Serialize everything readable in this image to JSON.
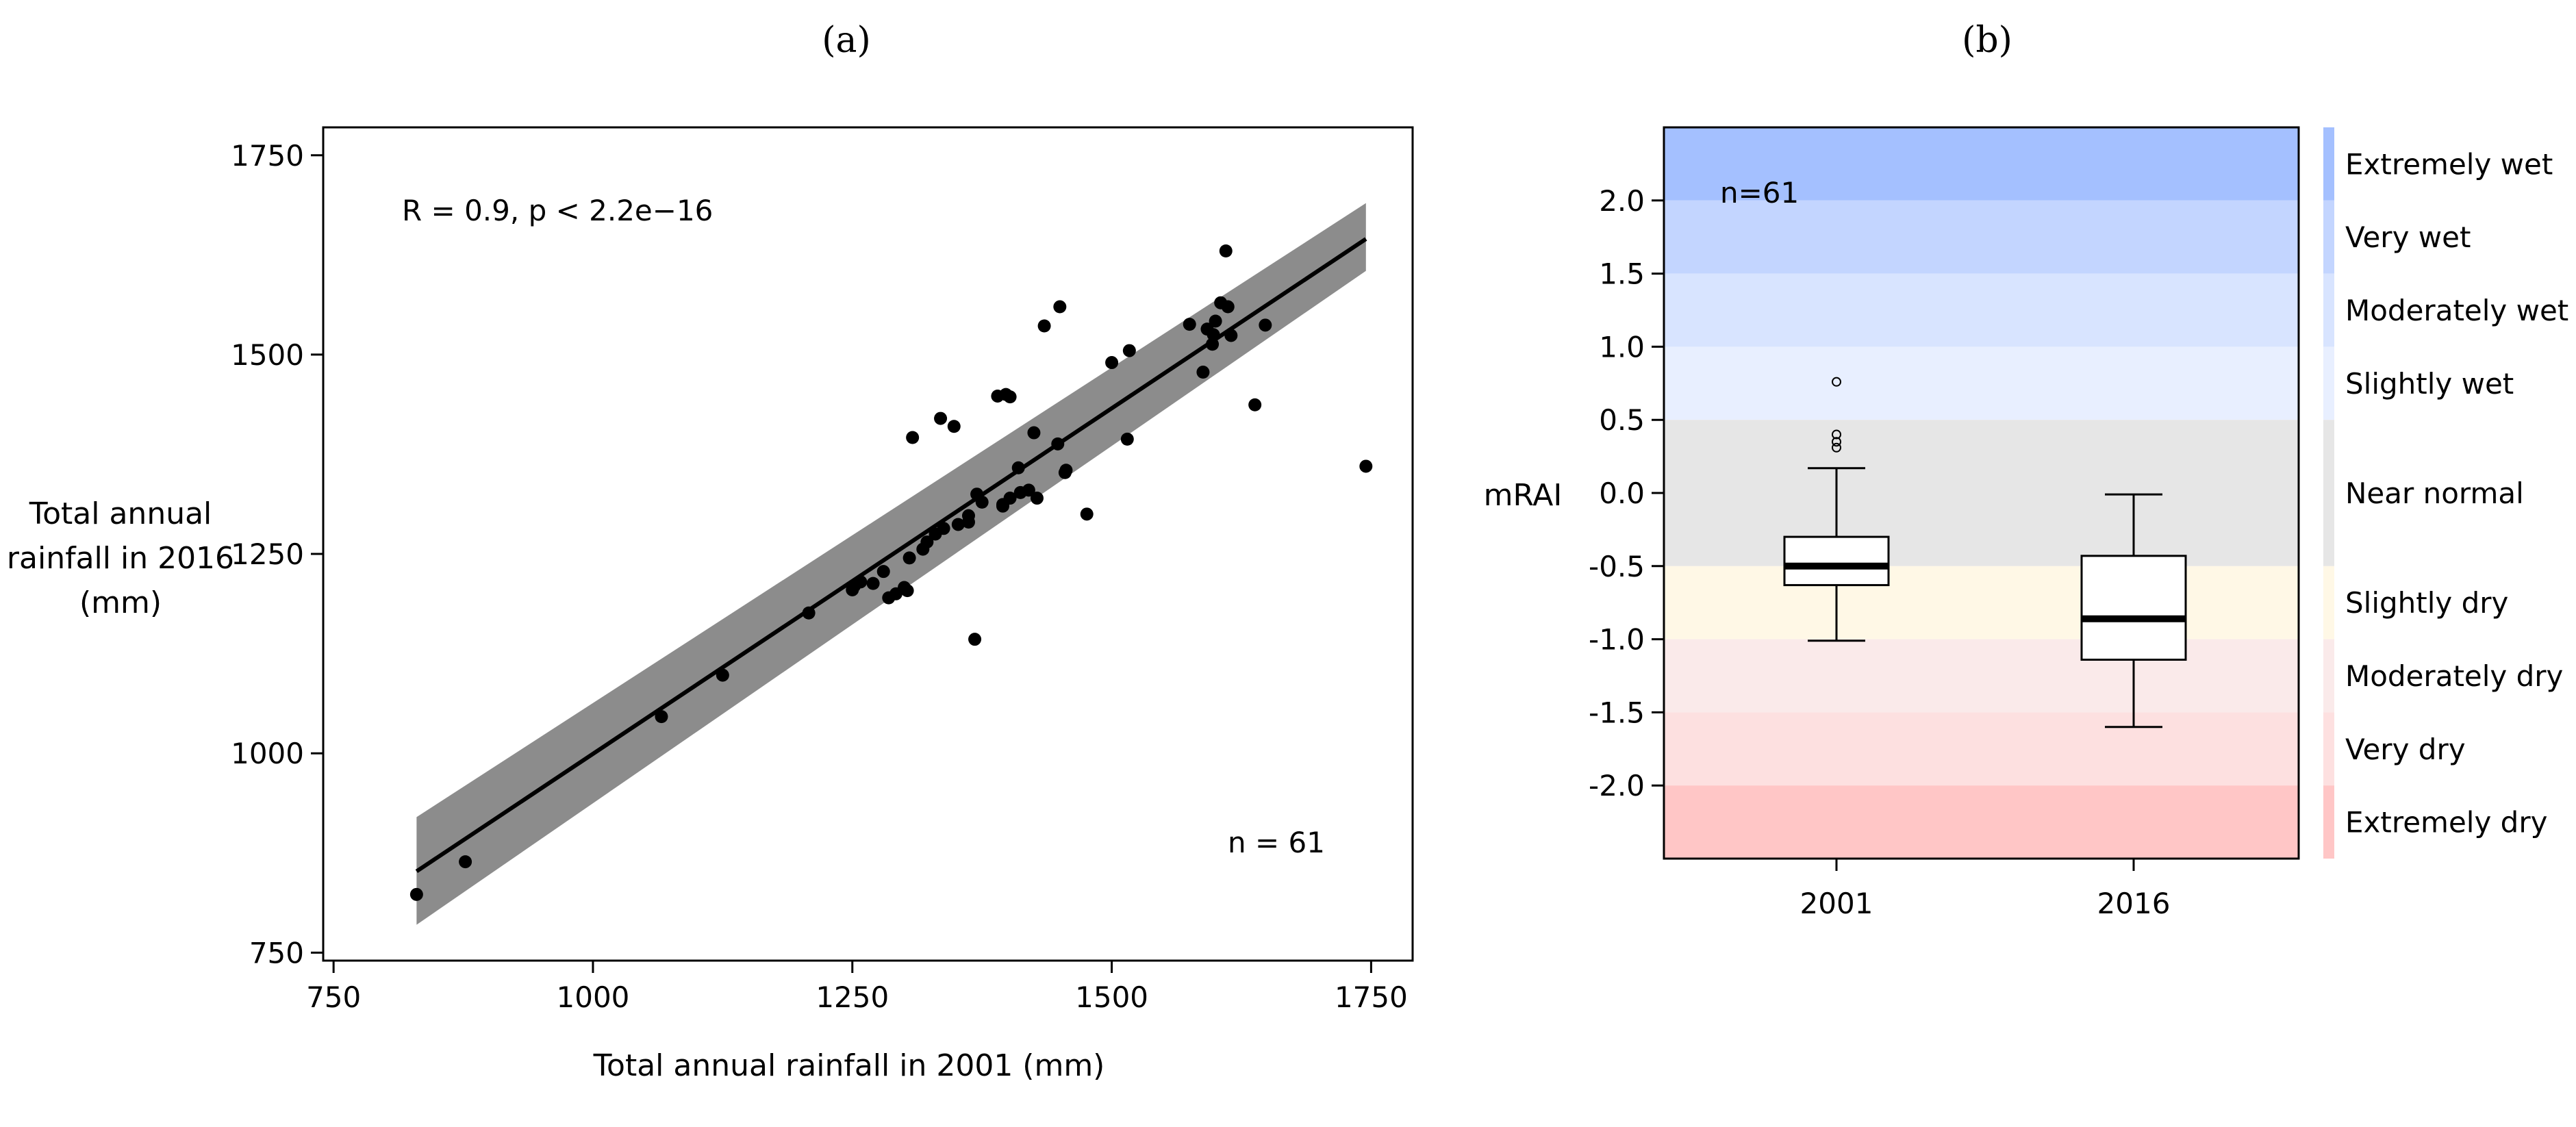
{
  "figure": {
    "panel_labels": [
      "(a)",
      "(b)"
    ]
  },
  "chart_data": [
    {
      "type": "scatter",
      "panel": "(a)",
      "xlabel": "Total annual rainfall in 2001 (mm)",
      "ylabel_lines": [
        "Total annual",
        "rainfall in 2016",
        "(mm)"
      ],
      "xlim": [
        740,
        1790
      ],
      "ylim": [
        740,
        1785
      ],
      "xticks": [
        750,
        1000,
        1250,
        1500,
        1750
      ],
      "yticks": [
        750,
        1000,
        1250,
        1500,
        1750
      ],
      "annotation": "R = 0.9, p < 2.2e−16",
      "n_label": "n = 61",
      "regression": {
        "x": [
          830,
          1745
        ],
        "y": [
          852,
          1645
        ]
      },
      "ci_band": {
        "x": [
          830,
          1745
        ],
        "lower": [
          785,
          1605
        ],
        "upper": [
          920,
          1690
        ]
      },
      "points": {
        "x": [
          830,
          877,
          1066,
          1125,
          1208,
          1250,
          1252,
          1258,
          1270,
          1280,
          1285,
          1292,
          1300,
          1305,
          1303,
          1308,
          1318,
          1322,
          1330,
          1335,
          1338,
          1348,
          1352,
          1362,
          1368,
          1375,
          1390,
          1395,
          1398,
          1402,
          1410,
          1412,
          1420,
          1425,
          1428,
          1435,
          1448,
          1450,
          1455,
          1476,
          1500,
          1515,
          1517,
          1575,
          1588,
          1592,
          1597,
          1600,
          1605,
          1610,
          1612,
          1615,
          1638,
          1648,
          1745,
          1395,
          1402,
          1370,
          1362,
          1456,
          1598
        ],
        "y": [
          823,
          864,
          1046,
          1098,
          1176,
          1205,
          1210,
          1215,
          1213,
          1228,
          1195,
          1200,
          1208,
          1245,
          1204,
          1396,
          1256,
          1265,
          1275,
          1420,
          1282,
          1410,
          1287,
          1290,
          1143,
          1315,
          1448,
          1312,
          1450,
          1447,
          1358,
          1327,
          1330,
          1402,
          1320,
          1536,
          1388,
          1560,
          1352,
          1300,
          1490,
          1394,
          1505,
          1538,
          1478,
          1532,
          1513,
          1542,
          1565,
          1630,
          1560,
          1524,
          1437,
          1537,
          1360,
          1310,
          1320,
          1325,
          1298,
          1355,
          1525
        ]
      }
    },
    {
      "type": "box",
      "panel": "(b)",
      "ylabel": "mRAI",
      "ylim": [
        -2.5,
        2.5
      ],
      "yticks": [
        2.0,
        1.5,
        1.0,
        0.5,
        0.0,
        -0.5,
        -1.0,
        -1.5,
        -2.0
      ],
      "ytick_labels": [
        "2.0",
        "1.5",
        "1.0",
        "0.5",
        "0.0",
        "-0.5",
        "-1.0",
        "-1.5",
        "-2.0"
      ],
      "categories": [
        "2001",
        "2016"
      ],
      "n_label": "n=61",
      "boxes": [
        {
          "name": "2001",
          "whisker_low": -1.01,
          "q1": -0.63,
          "median": -0.5,
          "q3": -0.3,
          "whisker_high": 0.17,
          "outliers": [
            0.76,
            0.4,
            0.35,
            0.31
          ]
        },
        {
          "name": "2016",
          "whisker_low": -1.6,
          "q1": -1.14,
          "median": -0.86,
          "q3": -0.43,
          "whisker_high": -0.01,
          "outliers": []
        }
      ],
      "bands": [
        {
          "label": "Extremely wet",
          "from": 2.0,
          "to": 2.5,
          "color": "#a4c0ff"
        },
        {
          "label": "Very wet",
          "from": 1.5,
          "to": 2.0,
          "color": "#c3d5ff"
        },
        {
          "label": "Moderately wet",
          "from": 1.0,
          "to": 1.5,
          "color": "#d8e4ff"
        },
        {
          "label": "Slightly wet",
          "from": 0.5,
          "to": 1.0,
          "color": "#e8efff"
        },
        {
          "label": "Near normal",
          "from": -0.5,
          "to": 0.5,
          "color": "#e6e6e6"
        },
        {
          "label": "Slightly dry",
          "from": -1.0,
          "to": -0.5,
          "color": "#fff8e6"
        },
        {
          "label": "Moderately dry",
          "from": -1.5,
          "to": -1.0,
          "color": "#faeaea"
        },
        {
          "label": "Very dry",
          "from": -2.0,
          "to": -1.5,
          "color": "#fde0e0"
        },
        {
          "label": "Extremely dry",
          "from": -2.5,
          "to": -2.0,
          "color": "#ffc6c6"
        }
      ]
    }
  ]
}
